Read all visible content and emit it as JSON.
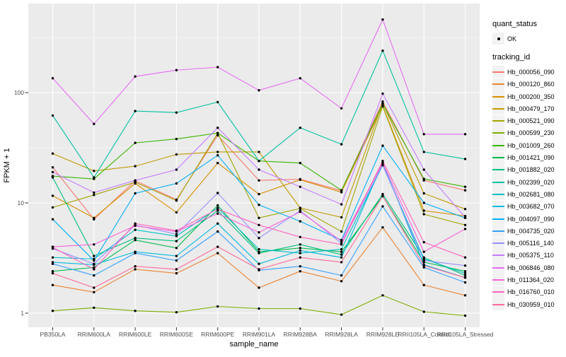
{
  "figure": {
    "background": "#FFFFFF",
    "panel_background": "#EBEBEB",
    "grid_color": "#FFFFFF",
    "tick_text_color": "#4D4D4D",
    "point_color": "#000000"
  },
  "axes": {
    "x_title": "sample_name",
    "y_title": "FPKM + 1",
    "y_tick_labels": [
      "1",
      "10",
      "100"
    ]
  },
  "legend": {
    "quant_status_title": "quant_status",
    "quant_status_ok_label": "OK",
    "tracking_id_title": "tracking_id"
  },
  "chart_data": {
    "type": "line",
    "title": "",
    "xlabel": "sample_name",
    "ylabel": "FPKM + 1",
    "y_scale": "log10",
    "y_ticks": [
      1,
      10,
      100
    ],
    "y_minor_ticks": [
      3.162,
      31.62,
      316.2
    ],
    "ylim": [
      0.74,
      640
    ],
    "grid": true,
    "legend_position": "right",
    "point_shape": "filled-black-circle",
    "quant_status": "OK",
    "x_categories": [
      "PB350LA",
      "RRIM600LA",
      "RRIM600LE",
      "RRIM600SE",
      "RRIM600PE",
      "RRIM901LA",
      "RRIM928BA",
      "RRIM928LA",
      "RRIM928LE",
      "RRII105LA_Control",
      "RRII105LA_Stressed"
    ],
    "series": [
      {
        "tracking_id": "Hb_000056_090",
        "color": "#F8766D",
        "values": [
          21,
          7.1,
          15.9,
          10.7,
          41,
          16,
          16.4,
          12.9,
          83,
          16,
          13
        ]
      },
      {
        "tracking_id": "Hb_000120_860",
        "color": "#EA8331",
        "values": [
          1.8,
          1.55,
          2.5,
          2.3,
          3.5,
          1.7,
          2.4,
          1.95,
          6.0,
          1.8,
          1.45
        ]
      },
      {
        "tracking_id": "Hb_000200_350",
        "color": "#D89000",
        "values": [
          11.6,
          7.3,
          15.0,
          8.2,
          23,
          12,
          16.2,
          12.5,
          76,
          8.5,
          7.6
        ]
      },
      {
        "tracking_id": "Hb_000479_170",
        "color": "#C09B00",
        "values": [
          28,
          19.5,
          21.5,
          27.5,
          29,
          29,
          9.0,
          7.4,
          80,
          12.2,
          8.8
        ]
      },
      {
        "tracking_id": "Hb_000521_090",
        "color": "#A3A500",
        "values": [
          9.1,
          11.8,
          15.4,
          10.5,
          43,
          7.3,
          8.9,
          5.5,
          75,
          7.9,
          6.3
        ]
      },
      {
        "tracking_id": "Hb_000599_230",
        "color": "#7CAE00",
        "values": [
          1.05,
          1.12,
          1.05,
          1.02,
          1.15,
          1.1,
          1.1,
          0.97,
          1.45,
          1.03,
          0.95
        ]
      },
      {
        "tracking_id": "Hb_001009_260",
        "color": "#39B600",
        "values": [
          17.5,
          16.5,
          35,
          38,
          43,
          24,
          23,
          13,
          79,
          16.5,
          14
        ]
      },
      {
        "tracking_id": "Hb_001421_090",
        "color": "#00BB4E",
        "values": [
          2.4,
          2.6,
          4.6,
          3.9,
          9.5,
          3.6,
          3.9,
          3.6,
          11.5,
          2.9,
          2.4
        ]
      },
      {
        "tracking_id": "Hb_001882_020",
        "color": "#00BF7D",
        "values": [
          17,
          3.3,
          4.8,
          4.5,
          8.5,
          3.5,
          4.2,
          3.4,
          12,
          3.2,
          2.2
        ]
      },
      {
        "tracking_id": "Hb_002399_020",
        "color": "#00C1A3",
        "values": [
          62,
          17,
          68,
          66,
          82,
          24,
          48,
          34,
          240,
          29,
          25
        ]
      },
      {
        "tracking_id": "Hb_002681_080",
        "color": "#00BFC4",
        "values": [
          3.2,
          3.1,
          5.7,
          5.0,
          9.0,
          3.8,
          3.5,
          3.8,
          22,
          3.1,
          2.3
        ]
      },
      {
        "tracking_id": "Hb_003682_070",
        "color": "#00BAE0",
        "values": [
          2.9,
          2.75,
          3.6,
          3.3,
          6.5,
          2.8,
          3.7,
          3.2,
          23,
          2.75,
          2.1
        ]
      },
      {
        "tracking_id": "Hb_004097_090",
        "color": "#00B0F6",
        "values": [
          7.1,
          3.0,
          12.2,
          15,
          27,
          9.6,
          6.8,
          4.6,
          33,
          10,
          7.3
        ]
      },
      {
        "tracking_id": "Hb_004735_020",
        "color": "#35A2FF",
        "values": [
          2.8,
          2.2,
          3.5,
          3.0,
          5.5,
          2.45,
          2.66,
          2.2,
          9.3,
          2.6,
          1.9
        ]
      },
      {
        "tracking_id": "Hb_005116_140",
        "color": "#9590FF",
        "values": [
          3.85,
          2.8,
          6.3,
          5.2,
          12.3,
          4.8,
          8.5,
          4.3,
          22,
          3.0,
          2.7
        ]
      },
      {
        "tracking_id": "Hb_005375_110",
        "color": "#C77CFF",
        "values": [
          19,
          12.4,
          16,
          20,
          48,
          20,
          14,
          9.7,
          98,
          20,
          7.4
        ]
      },
      {
        "tracking_id": "Hb_006846_080",
        "color": "#E76BF3",
        "values": [
          135,
          52,
          140,
          160,
          170,
          105,
          135,
          72,
          460,
          42,
          42
        ]
      },
      {
        "tracking_id": "Hb_011364_020",
        "color": "#FA62DB",
        "values": [
          4.0,
          4.2,
          6.2,
          5.5,
          8.0,
          5.4,
          8.3,
          4.5,
          23,
          3.6,
          5.8
        ]
      },
      {
        "tracking_id": "Hb_016760_010",
        "color": "#FF62BC",
        "values": [
          3.95,
          2.5,
          6.5,
          5.6,
          8.8,
          6.3,
          4.9,
          4.2,
          24,
          4.4,
          3.2
        ]
      },
      {
        "tracking_id": "Hb_030959_010",
        "color": "#FF6A98",
        "values": [
          2.3,
          1.7,
          2.66,
          2.5,
          4.0,
          2.5,
          3.2,
          2.9,
          11.5,
          2.7,
          2.1
        ]
      }
    ]
  }
}
